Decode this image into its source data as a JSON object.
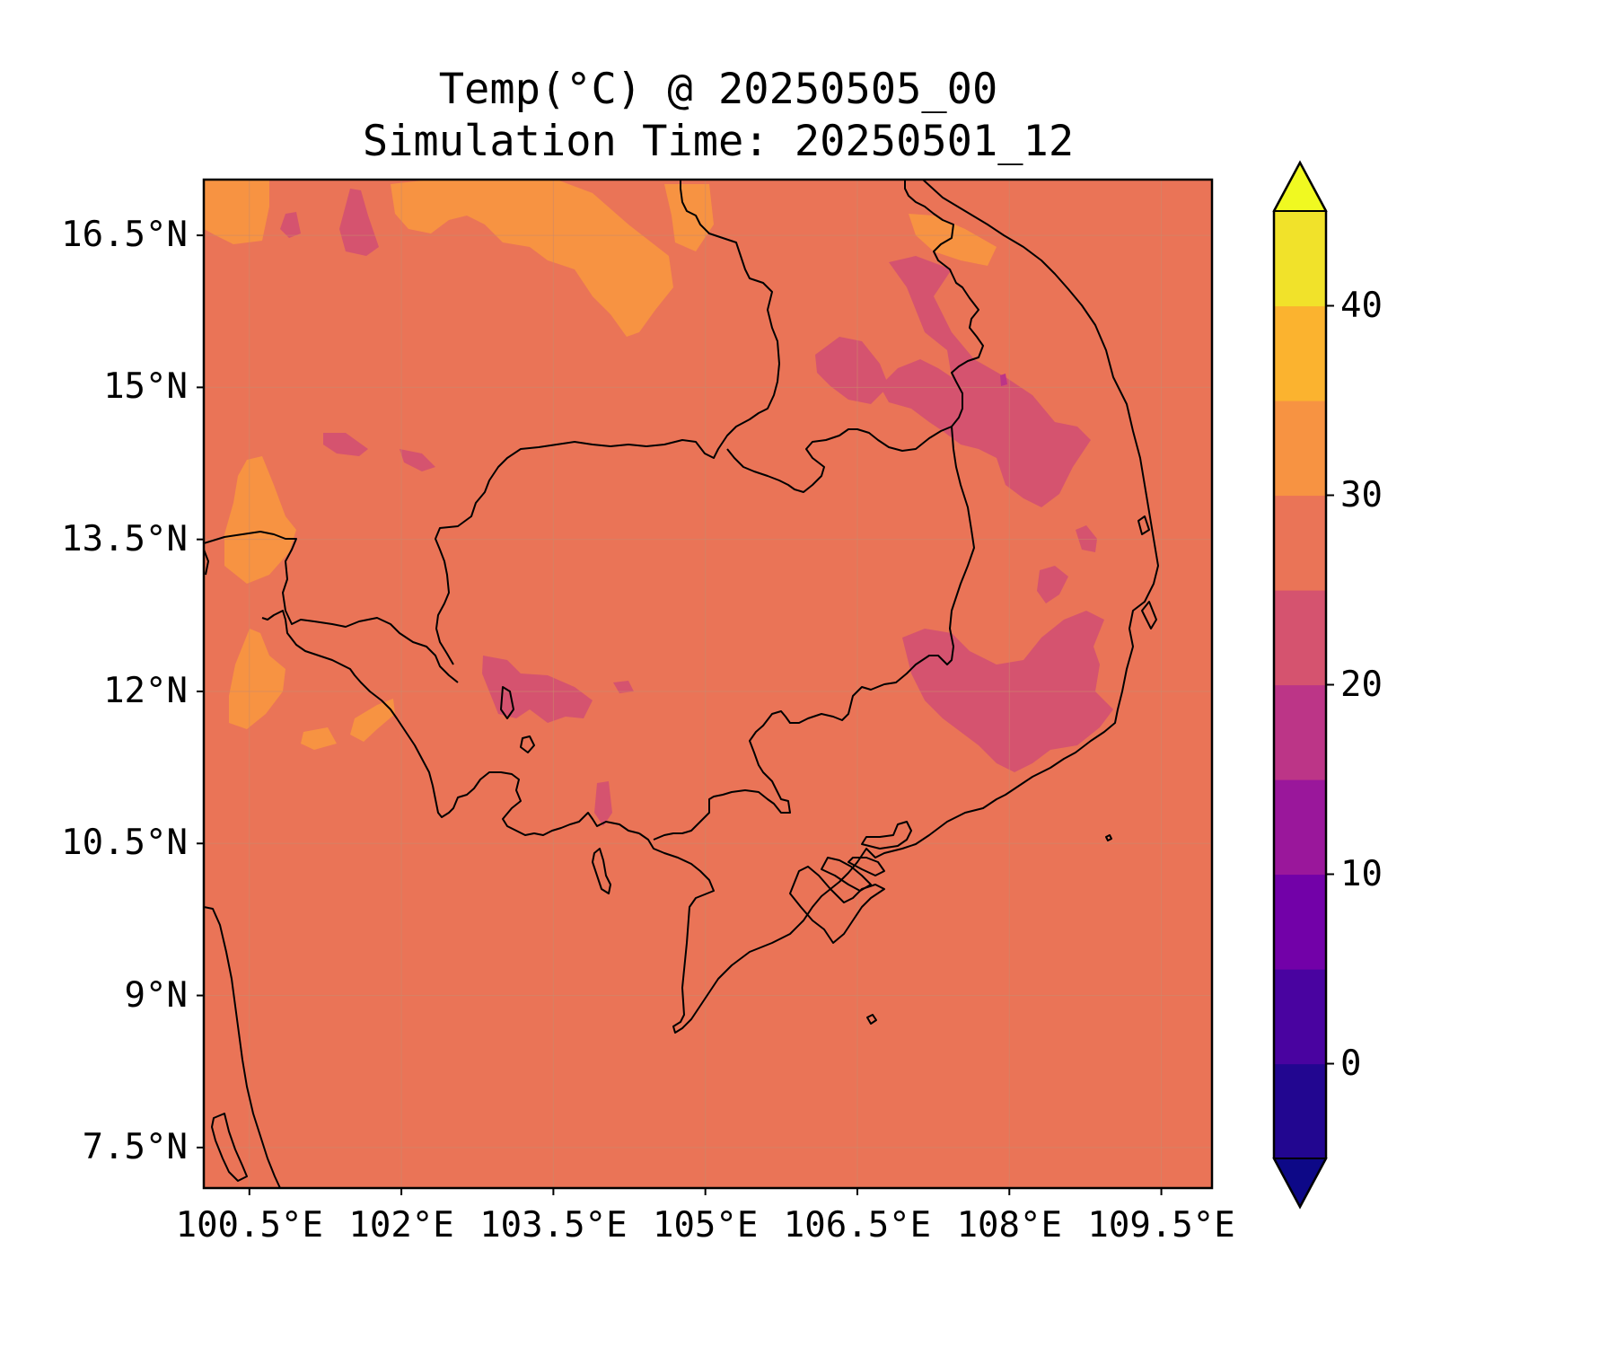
{
  "title": {
    "line1": "Temp(°C) @ 20250505_00",
    "line2": "Simulation Time: 20250501_12"
  },
  "chart_data": {
    "type": "filled-contour-map",
    "variable": "Temp(°C)",
    "valid_time": "20250505_00",
    "simulation_time": "20250501_12",
    "region": {
      "lon_range": [
        100.05,
        110.0
      ],
      "lat_range": [
        7.1,
        17.05
      ]
    },
    "x_ticks": [
      "100.5°E",
      "102°E",
      "103.5°E",
      "105°E",
      "106.5°E",
      "108°E",
      "109.5°E"
    ],
    "x_tick_values": [
      100.5,
      102.0,
      103.5,
      105.0,
      106.5,
      108.0,
      109.5
    ],
    "y_ticks": [
      "16.5°N",
      "15°N",
      "13.5°N",
      "12°N",
      "10.5°N",
      "9°N",
      "7.5°N"
    ],
    "y_tick_values": [
      16.5,
      15.0,
      13.5,
      12.0,
      10.5,
      9.0,
      7.5
    ],
    "grid": true,
    "dominant_level": "25-30",
    "regions": [
      {
        "level": "30-35",
        "area": "north-west Thailand / Laos near 16.5°N"
      },
      {
        "level": "30-35",
        "area": "eastern Thailand near 13.5°N and 12°N"
      },
      {
        "level": "20-25",
        "area": "Central Highlands Vietnam 12°N-15°N"
      },
      {
        "level": "20-25",
        "area": "south-west Laos near 15°N"
      },
      {
        "level": "20-25",
        "area": "Cardamom Mountains Cambodia near 11.5°N"
      }
    ],
    "colorbar": {
      "levels": [
        -5,
        0,
        5,
        10,
        15,
        20,
        25,
        30,
        35,
        40,
        45
      ],
      "colors": [
        "#220690",
        "#4903a0",
        "#7201a8",
        "#9a179b",
        "#bc3587",
        "#d5536f",
        "#ea7457",
        "#f79342",
        "#fbb32f",
        "#f1e22a"
      ],
      "under_color": "#0d0887",
      "over_color": "#f0f921",
      "extend": "both",
      "tick_labels": [
        "0",
        "10",
        "20",
        "30",
        "40"
      ],
      "tick_values": [
        0,
        10,
        20,
        30,
        40
      ]
    }
  }
}
